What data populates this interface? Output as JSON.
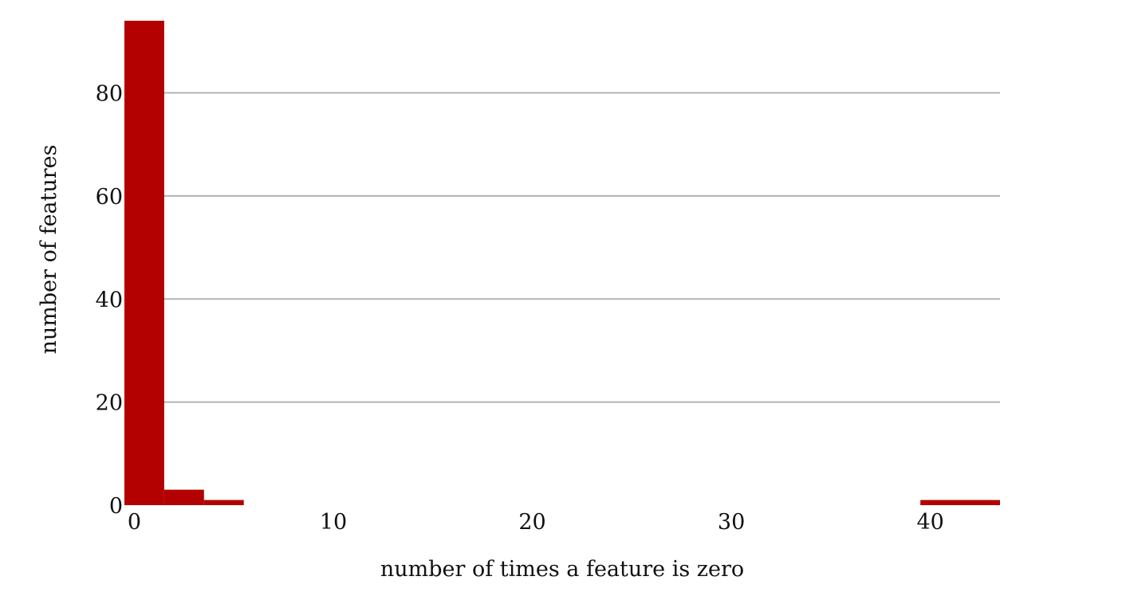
{
  "chart_data": {
    "type": "bar",
    "subtype": "histogram",
    "title": "",
    "xlabel": "number of times a feature is zero",
    "ylabel": "number of features",
    "bins": [
      {
        "x0": -0.5,
        "x1": 1.5,
        "value": 94
      },
      {
        "x0": 1.5,
        "x1": 3.5,
        "value": 3
      },
      {
        "x0": 3.5,
        "x1": 5.5,
        "value": 1
      },
      {
        "x0": 39.5,
        "x1": 43.5,
        "value": 1
      }
    ],
    "xlim": [
      -0.5,
      43.5
    ],
    "ylim": [
      0,
      94
    ],
    "x_ticks": [
      0,
      10,
      20,
      30,
      40
    ],
    "y_ticks": [
      0,
      20,
      40,
      60,
      80
    ],
    "grid": "horizontal",
    "legend": "none",
    "colors": {
      "bar": "#b30000",
      "grid": "#b3b3b3"
    }
  }
}
